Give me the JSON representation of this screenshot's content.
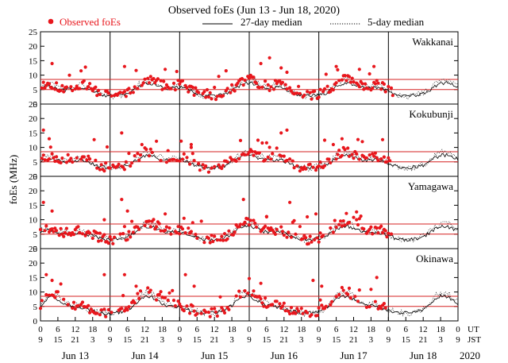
{
  "chart_data": {
    "type": "scatter",
    "title": "Observed foEs (Jun 13 - Jun 18, 2020)",
    "ylabel": "foEs (MHz)",
    "ylim": [
      0,
      25
    ],
    "yticks": [
      0,
      5,
      10,
      15,
      20,
      25
    ],
    "xlim_hours_ut": [
      0,
      144
    ],
    "legend": {
      "observed": "Observed foEs",
      "median27": "27-day median",
      "median5": "5-day median"
    },
    "ut_ticks": [
      "0",
      "6",
      "12",
      "18",
      "0",
      "6",
      "12",
      "18",
      "0",
      "6",
      "12",
      "18",
      "0",
      "6",
      "12",
      "18",
      "0",
      "6",
      "12",
      "18",
      "0",
      "6",
      "12",
      "18",
      "0"
    ],
    "jst_ticks": [
      "9",
      "15",
      "21",
      "3",
      "9",
      "15",
      "21",
      "3",
      "9",
      "15",
      "21",
      "3",
      "9",
      "15",
      "21",
      "3",
      "9",
      "15",
      "21",
      "3",
      "9",
      "15",
      "21",
      "3",
      "9"
    ],
    "ut_label": "UT",
    "jst_label": "JST",
    "days": [
      "Jun 13",
      "Jun 14",
      "Jun 15",
      "Jun 16",
      "Jun 17",
      "Jun 18"
    ],
    "year": "2020",
    "reference_line_colors": {
      "observed": "#e8171d",
      "reference": "#d62020",
      "median": "#000000"
    },
    "stations": [
      {
        "name": "Wakkanai",
        "ref_levels": [
          5,
          8.5
        ],
        "seed": 11,
        "observed_until_hour": 122,
        "median27": [
          5,
          6.5,
          6.2,
          5.4,
          4.8,
          5,
          5.3,
          5.8,
          5.5,
          4.6,
          3.6,
          3,
          2.8,
          3,
          3.2,
          3.5,
          4.5,
          6,
          7,
          7.2,
          6.6,
          5.8,
          5.4,
          5.6,
          5.9,
          5.5,
          4.6,
          3.7,
          3,
          2.8,
          2.9,
          3.1,
          3.6,
          4.6,
          6,
          7,
          7.3,
          6.8,
          6,
          5.5,
          5.6,
          5.8,
          5.4,
          4.5,
          3.6,
          3,
          2.8,
          3,
          3.2,
          3.6,
          4.6,
          6.1,
          7.1,
          7.3,
          6.7,
          5.9,
          5.5,
          5.6,
          5.8,
          5.4,
          4.5,
          3.6,
          3,
          2.8,
          2.9,
          3.2,
          3.6,
          4.7,
          6.1,
          7.1,
          7.3,
          6.7,
          5.9,
          5.5,
          5.6,
          5.8,
          5.4,
          4.5,
          3.6,
          3,
          2.8,
          2.9,
          3.2,
          3.6,
          4.6,
          6
        ],
        "median5": [
          5.5,
          7,
          6.8,
          6,
          5.2,
          5.5,
          5.8,
          6.5,
          6.2,
          5,
          3.8,
          3.1,
          2.6,
          2.8,
          3.2,
          3.8,
          5,
          6.8,
          8,
          8.2,
          7.4,
          6.4,
          5.8,
          6,
          6.6,
          6,
          4.9,
          3.8,
          3,
          2.6,
          2.7,
          3,
          3.7,
          5,
          6.8,
          8,
          8.5,
          7.8,
          6.8,
          6,
          6.2,
          6.5,
          6,
          4.8,
          3.7,
          3,
          2.6,
          2.9,
          3.2,
          3.8,
          5,
          7,
          8.3,
          8.5,
          7.6,
          6.6,
          6,
          6.2,
          6.6,
          6,
          4.8,
          3.7,
          3,
          2.6,
          2.8,
          3.2,
          3.8,
          5.2,
          7,
          8.4,
          8.6,
          7.6,
          6.6,
          6,
          6.3,
          6.6,
          6,
          4.8,
          3.7,
          3,
          2.6,
          2.8,
          3.2,
          3.8,
          5,
          6.9
        ]
      },
      {
        "name": "Kokubunji",
        "ref_levels": [
          5,
          8.5
        ],
        "seed": 23,
        "observed_until_hour": 121,
        "median27": [
          5,
          6.2,
          6,
          5.5,
          5,
          5.2,
          5.5,
          5.6,
          5.2,
          4.4,
          3.6,
          3.1,
          2.9,
          3.1,
          3.4,
          3.8,
          4.8,
          6.2,
          7.2,
          7.2,
          6.5,
          5.8,
          5.5,
          5.7,
          5.8,
          5.3,
          4.5,
          3.7,
          3.1,
          2.9,
          3,
          3.3,
          3.8,
          4.9,
          6.2,
          7.2,
          7.3,
          6.7,
          6,
          5.6,
          5.7,
          5.8,
          5.3,
          4.4,
          3.6,
          3.1,
          2.9,
          3.1,
          3.4,
          3.8,
          4.9,
          6.3,
          7.2,
          7.3,
          6.6,
          5.9,
          5.6,
          5.7,
          5.8,
          5.3,
          4.4,
          3.6,
          3.1,
          2.9,
          3,
          3.3,
          3.8,
          4.9,
          6.3,
          7.3,
          7.3,
          6.6,
          5.9,
          5.6,
          5.7,
          5.8,
          5.3,
          4.4,
          3.6,
          3.1,
          2.9,
          3,
          3.3,
          3.8,
          4.8,
          6.2
        ],
        "median5": [
          5.5,
          6.8,
          6.6,
          6.2,
          5.6,
          6,
          6.5,
          6.4,
          5.8,
          4.8,
          3.8,
          3.2,
          2.8,
          3,
          3.4,
          4,
          5.4,
          7,
          8.2,
          8.3,
          7.4,
          6.5,
          6,
          6.4,
          6.6,
          6,
          4.9,
          3.9,
          3.1,
          2.7,
          2.9,
          3.3,
          3.9,
          5.3,
          7,
          8.3,
          8.5,
          7.7,
          6.8,
          6.2,
          6.4,
          6.6,
          5.9,
          4.8,
          3.8,
          3.1,
          2.7,
          3,
          3.4,
          4,
          5.4,
          7.2,
          8.4,
          8.6,
          7.6,
          6.6,
          6.2,
          6.4,
          6.6,
          5.9,
          4.8,
          3.8,
          3.1,
          2.7,
          2.9,
          3.3,
          4,
          5.4,
          7.2,
          8.5,
          8.6,
          7.6,
          6.6,
          6.2,
          6.4,
          6.6,
          5.9,
          4.8,
          3.8,
          3.1,
          2.7,
          2.9,
          3.3,
          4,
          5.3,
          7
        ]
      },
      {
        "name": "Yamagawa",
        "ref_levels": [
          5,
          8.5
        ],
        "seed": 37,
        "observed_until_hour": 121,
        "median27": [
          5.5,
          6.5,
          6.2,
          5.6,
          5,
          5,
          5.3,
          5.4,
          5,
          4.3,
          3.6,
          3.2,
          3,
          3.2,
          3.6,
          4.1,
          5.2,
          6.6,
          7.6,
          7.7,
          7,
          6.1,
          5.6,
          5.6,
          5.8,
          5.3,
          4.5,
          3.8,
          3.2,
          3,
          3.1,
          3.4,
          4,
          5.2,
          6.6,
          7.6,
          7.8,
          7.1,
          6.2,
          5.7,
          5.7,
          5.8,
          5.3,
          4.4,
          3.7,
          3.2,
          3,
          3.2,
          3.6,
          4.1,
          5.3,
          6.7,
          7.7,
          7.8,
          7,
          6.1,
          5.6,
          5.7,
          5.8,
          5.3,
          4.4,
          3.7,
          3.2,
          3,
          3.1,
          3.4,
          4.1,
          5.3,
          6.7,
          7.7,
          7.8,
          7,
          6.1,
          5.6,
          5.7,
          5.8,
          5.3,
          4.4,
          3.7,
          3.2,
          3,
          3.1,
          3.4,
          4,
          5.2,
          6.6
        ],
        "median5": [
          6,
          7,
          6.8,
          6.2,
          5.6,
          5.6,
          6,
          6.1,
          5.6,
          4.7,
          3.9,
          3.3,
          3,
          3.2,
          3.7,
          4.4,
          5.8,
          7.4,
          8.6,
          8.8,
          7.9,
          6.8,
          6.1,
          6.2,
          6.5,
          5.9,
          4.9,
          4,
          3.3,
          2.9,
          3.1,
          3.5,
          4.2,
          5.7,
          7.4,
          8.6,
          8.9,
          8,
          6.9,
          6.2,
          6.3,
          6.5,
          5.8,
          4.8,
          3.9,
          3.3,
          2.9,
          3.2,
          3.7,
          4.4,
          5.8,
          7.5,
          8.7,
          8.9,
          7.9,
          6.8,
          6.2,
          6.3,
          6.5,
          5.8,
          4.8,
          3.9,
          3.3,
          2.9,
          3.1,
          3.5,
          4.4,
          5.8,
          7.5,
          8.7,
          8.9,
          7.9,
          6.8,
          6.2,
          6.3,
          6.5,
          5.8,
          4.8,
          3.9,
          3.3,
          2.9,
          3.1,
          3.5,
          4.3,
          5.7,
          7.4
        ]
      },
      {
        "name": "Okinawa",
        "ref_levels": [
          5,
          8.5
        ],
        "seed": 53,
        "observed_until_hour": 120,
        "median27": [
          5,
          7.5,
          8.5,
          7.5,
          6,
          5.2,
          5,
          4.6,
          4,
          3.5,
          3,
          2.7,
          2.6,
          2.8,
          3.2,
          3.8,
          5.2,
          7.2,
          8.5,
          8.4,
          7.3,
          6,
          5.2,
          5,
          4.8,
          4.2,
          3.6,
          3.1,
          2.8,
          2.7,
          2.8,
          3.2,
          3.9,
          5.4,
          7.4,
          8.6,
          8.5,
          7.4,
          6.1,
          5.3,
          5.1,
          4.9,
          4.2,
          3.6,
          3.1,
          2.8,
          2.7,
          2.9,
          3.3,
          3.9,
          5.4,
          7.4,
          8.6,
          8.5,
          7.4,
          6.1,
          5.3,
          5.1,
          4.9,
          4.2,
          3.6,
          3.1,
          2.8,
          2.7,
          2.8,
          3.2,
          3.9,
          5.4,
          7.4,
          8.6,
          8.5,
          7.4,
          6.1,
          5.3,
          5.1,
          4.9,
          4.2,
          3.6,
          3.1,
          2.8,
          2.7,
          2.8,
          3.2,
          3.9,
          5.3,
          7.3
        ],
        "median5": [
          5.5,
          8.5,
          10,
          8.8,
          7,
          5.8,
          5.4,
          5,
          4.3,
          3.7,
          3.1,
          2.7,
          2.5,
          2.7,
          3.2,
          4,
          5.8,
          8.4,
          10,
          9.8,
          8.4,
          6.8,
          5.8,
          5.5,
          5.2,
          4.5,
          3.8,
          3.2,
          2.8,
          2.6,
          2.7,
          3.2,
          4.1,
          6,
          8.6,
          10.2,
          10,
          8.5,
          6.9,
          5.9,
          5.6,
          5.3,
          4.5,
          3.8,
          3.2,
          2.8,
          2.6,
          2.8,
          3.3,
          4.1,
          6,
          8.6,
          10.2,
          10,
          8.5,
          6.9,
          5.9,
          5.6,
          5.3,
          4.5,
          3.8,
          3.2,
          2.8,
          2.6,
          2.7,
          3.2,
          4.1,
          6,
          8.6,
          10.2,
          10,
          8.5,
          6.9,
          5.9,
          5.6,
          5.3,
          4.5,
          3.8,
          3.2,
          2.8,
          2.6,
          2.7,
          3.2,
          4.1,
          5.9,
          8.5
        ]
      }
    ],
    "outliers": [
      {
        "station": 0,
        "points": [
          [
            4,
            14
          ],
          [
            29,
            13
          ],
          [
            43,
            12
          ],
          [
            64,
            11.5
          ],
          [
            76,
            14
          ],
          [
            79,
            16
          ],
          [
            83,
            12.5
          ],
          [
            85,
            11
          ],
          [
            102,
            13
          ],
          [
            110,
            12
          ],
          [
            115,
            13
          ]
        ]
      },
      {
        "station": 1,
        "points": [
          [
            1,
            16
          ],
          [
            3,
            13
          ],
          [
            28,
            15
          ],
          [
            35,
            11
          ],
          [
            52,
            11
          ],
          [
            75,
            12.5
          ],
          [
            83,
            15
          ],
          [
            85,
            16
          ],
          [
            98,
            12.5
          ],
          [
            101,
            11
          ],
          [
            104,
            13
          ],
          [
            111,
            12
          ]
        ]
      },
      {
        "station": 2,
        "points": [
          [
            1,
            16
          ],
          [
            4,
            13
          ],
          [
            22,
            10
          ],
          [
            28,
            17
          ],
          [
            30,
            13
          ],
          [
            43,
            12
          ],
          [
            70,
            17
          ],
          [
            78,
            11
          ],
          [
            86,
            16
          ],
          [
            92,
            11
          ],
          [
            95,
            12
          ],
          [
            109,
            10
          ]
        ]
      },
      {
        "station": 3,
        "points": [
          [
            2,
            16
          ],
          [
            4,
            14
          ],
          [
            22,
            16
          ],
          [
            29,
            16
          ],
          [
            33,
            12
          ],
          [
            50,
            16
          ],
          [
            53,
            12
          ],
          [
            76,
            13
          ],
          [
            94,
            14
          ],
          [
            97,
            12
          ],
          [
            116,
            15
          ]
        ]
      }
    ]
  }
}
